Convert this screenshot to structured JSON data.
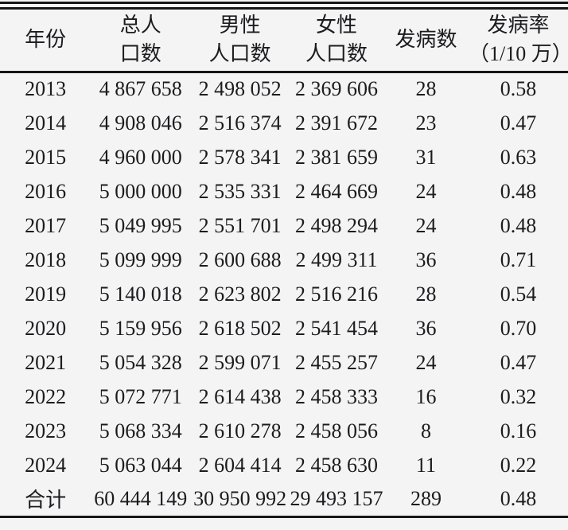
{
  "page": {
    "background_color": "#f4f4f5",
    "text_color": "#1c1c1e",
    "rule_color": "#161616"
  },
  "table": {
    "header": [
      {
        "name": "year",
        "lines": [
          "年份"
        ]
      },
      {
        "name": "total-population",
        "lines": [
          "总人",
          "口数"
        ]
      },
      {
        "name": "male-population",
        "lines": [
          "男性",
          "人口数"
        ]
      },
      {
        "name": "female-population",
        "lines": [
          "女性",
          "人口数"
        ]
      },
      {
        "name": "cases",
        "lines": [
          "发病数"
        ]
      },
      {
        "name": "incidence-rate",
        "lines": [
          "发病率",
          "（1/10 万）"
        ]
      }
    ],
    "rows": [
      [
        "2013",
        "4 867 658",
        "2 498 052",
        "2 369 606",
        "28",
        "0.58"
      ],
      [
        "2014",
        "4 908 046",
        "2 516 374",
        "2 391 672",
        "23",
        "0.47"
      ],
      [
        "2015",
        "4 960 000",
        "2 578 341",
        "2 381 659",
        "31",
        "0.63"
      ],
      [
        "2016",
        "5 000 000",
        "2 535 331",
        "2 464 669",
        "24",
        "0.48"
      ],
      [
        "2017",
        "5 049 995",
        "2 551 701",
        "2 498 294",
        "24",
        "0.48"
      ],
      [
        "2018",
        "5 099 999",
        "2 600 688",
        "2 499 311",
        "36",
        "0.71"
      ],
      [
        "2019",
        "5 140 018",
        "2 623 802",
        "2 516 216",
        "28",
        "0.54"
      ],
      [
        "2020",
        "5 159 956",
        "2 618 502",
        "2 541 454",
        "36",
        "0.70"
      ],
      [
        "2021",
        "5 054 328",
        "2 599 071",
        "2 455 257",
        "24",
        "0.47"
      ],
      [
        "2022",
        "5 072 771",
        "2 614 438",
        "2 458 333",
        "16",
        "0.32"
      ],
      [
        "2023",
        "5 068 334",
        "2 610 278",
        "2 458 056",
        "8",
        "0.16"
      ],
      [
        "2024",
        "5 063 044",
        "2 604 414",
        "2 458 630",
        "11",
        "0.22"
      ]
    ],
    "total_row": [
      "合计",
      "60 444 149",
      "30 950 992",
      "29 493 157",
      "289",
      "0.48"
    ]
  }
}
